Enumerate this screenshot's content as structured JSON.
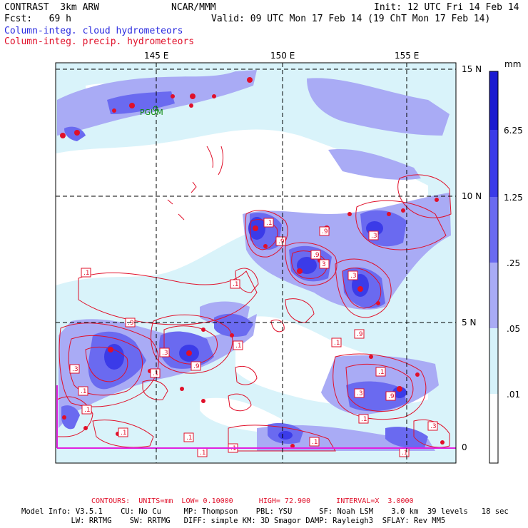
{
  "header": {
    "product": "CONTRAST  3km ARW",
    "center": "NCAR/MMM",
    "init": "Init: 12 UTC Fri 14 Feb 14",
    "fcst": "Fcst:   69 h",
    "valid": "Valid: 09 UTC Mon 17 Feb 14 (19 ChT Mon 17 Feb 14)",
    "field1": "Column-integ. cloud hydrometeors",
    "field2": "Column-integ. precip. hydrometeors"
  },
  "axes": {
    "lon_labels": [
      "145 E",
      "150 E",
      "155 E"
    ],
    "lat_labels": [
      "15 N",
      "10 N",
      "5 N",
      "0"
    ]
  },
  "station": "PGUM",
  "colorbar": {
    "unit": "mm",
    "labels": [
      "6.25",
      "1.25",
      ".25",
      ".05",
      ".01"
    ],
    "colors": [
      "#1a1ad0",
      "#3b3be8",
      "#6a6af0",
      "#a9abf5",
      "#d6f2fa",
      "#ffffff"
    ]
  },
  "contour_labels": [
    ".1",
    ".3",
    ".9",
    "3"
  ],
  "footer": {
    "contours": "CONTOURS:  UNITS=mm  LOW= 0.10000      HIGH= 72.900      INTERVAL=X  3.0000",
    "line1": "Model Info: V3.5.1    CU: No Cu     MP: Thompson    PBL: YSU      SF: Noah LSM    3.0 km  39 levels   18 sec",
    "line2": "           LW: RRTMG    SW: RRTMG   DIFF: simple KM: 3D Smagor DAMP: Rayleigh3  SFLAY: Rev MM5"
  }
}
